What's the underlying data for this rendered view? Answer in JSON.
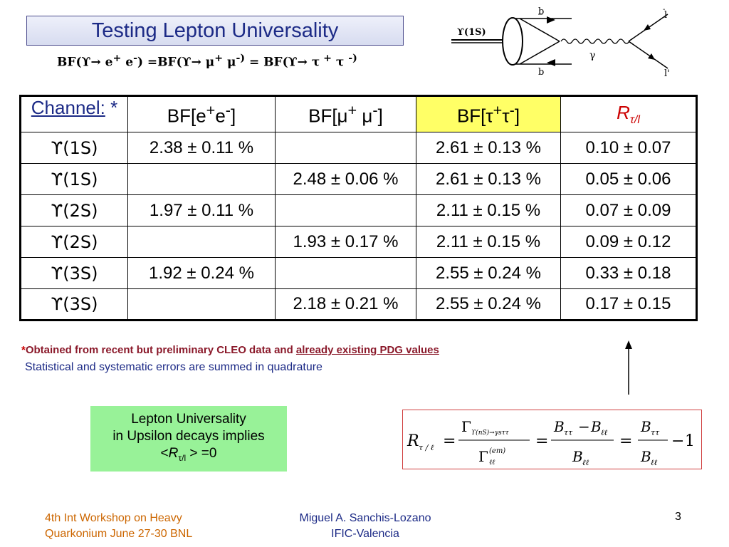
{
  "slide": {
    "title": "Testing Lepton Universality",
    "bf_line": {
      "p1": "BF(",
      "g1": "ϒ→ e",
      "s1": "+",
      "g2": " e",
      "s2": "-",
      "p2": ") =BF(",
      "g3": "ϒ→ μ",
      "s3": "+",
      "g4": " μ",
      "s4": "-)",
      "p3": " = BF(",
      "g5": "ϒ→ τ",
      "s5": " +",
      "g6": " τ ",
      "s6": "-)"
    },
    "diagram": {
      "initial_state": "ϒ(1S)",
      "top_quark": "b",
      "bottom_quark": "b",
      "boson": "γ",
      "lepton_top": "l",
      "lepton_bottom": "l'",
      "lepton_top_bar": "-"
    },
    "table": {
      "header": {
        "channel_label": "Channel:",
        "channel_star": " *",
        "ee_base": "BF[e",
        "ee_sup1": "+",
        "ee_mid": "e",
        "ee_sup2": "-",
        "ee_end": "]",
        "mm_base": "BF[μ",
        "mm_sup1": "+",
        "mm_mid": " μ",
        "mm_sup2": "-",
        "mm_end": "]",
        "tt_base": "BF[τ",
        "tt_sup1": "+",
        "tt_mid": "τ",
        "tt_sup2": "-",
        "tt_end": "]",
        "r_base": "R",
        "r_sub": "τ/l"
      },
      "rows": [
        {
          "channel": "ϒ(1S)",
          "ee": "2.38 ± 0.11 %",
          "mm": "",
          "tt": "2.61 ± 0.13 %",
          "r": "0.10 ± 0.07"
        },
        {
          "channel": "ϒ(1S)",
          "ee": "",
          "mm": "2.48 ± 0.06 %",
          "tt": "2.61 ± 0.13 %",
          "r": "0.05 ± 0.06"
        },
        {
          "channel": "ϒ(2S)",
          "ee": "1.97 ± 0.11 %",
          "mm": "",
          "tt": "2.11 ± 0.15 %",
          "r": "0.07 ± 0.09"
        },
        {
          "channel": "ϒ(2S)",
          "ee": "",
          "mm": "1.93 ± 0.17 %",
          "tt": "2.11 ± 0.15 %",
          "r": "0.09 ± 0.12"
        },
        {
          "channel": "ϒ(3S)",
          "ee": "1.92 ± 0.24 %",
          "mm": "",
          "tt": "2.55 ± 0.24 %",
          "r": "0.33 ± 0.18"
        },
        {
          "channel": "ϒ(3S)",
          "ee": "",
          "mm": "2.18 ± 0.21 %",
          "tt": "2.55 ± 0.24 %",
          "r": "0.17 ± 0.15"
        }
      ]
    },
    "footnote": {
      "star": "*",
      "text": "Obtained from recent but preliminary CLEO data and ",
      "link": "already existing PDG values",
      "line2": "Statistical and systematic errors are summed in quadrature"
    },
    "conclusion": {
      "line1": "Lepton Universality",
      "line2": "in Upsilon decays implies",
      "prefix": "<",
      "r": "R",
      "r_sub": "τ/l",
      "suffix": " > =0"
    },
    "formula": {
      "lhs": "R",
      "lhs_sub": "τ / ℓ",
      "eq": "=",
      "gamma": "Γ",
      "num1_sub": "ϒ(nS)→γsττ",
      "den1_sup": "(em)",
      "den1_sub": "ℓℓ",
      "B": "B",
      "tt_sub": "ττ",
      "ll_sub": "ℓℓ",
      "minus": "−",
      "one": "1"
    },
    "footer": {
      "left_line1": "4th Int Workshop on Heavy",
      "left_line2": "Quarkonium  June 27-30 BNL",
      "center_line1": "Miguel A. Sanchis-Lozano",
      "center_line2": "IFIC-Valencia",
      "page": "3"
    },
    "colors": {
      "title_text": "#1c2a86",
      "tau_header_bg": "#ffff66",
      "r_header": "#cc0000",
      "footnote": "#8b1a2b",
      "conclusion_bg": "#98f298",
      "footer_left": "#cc6600"
    }
  }
}
